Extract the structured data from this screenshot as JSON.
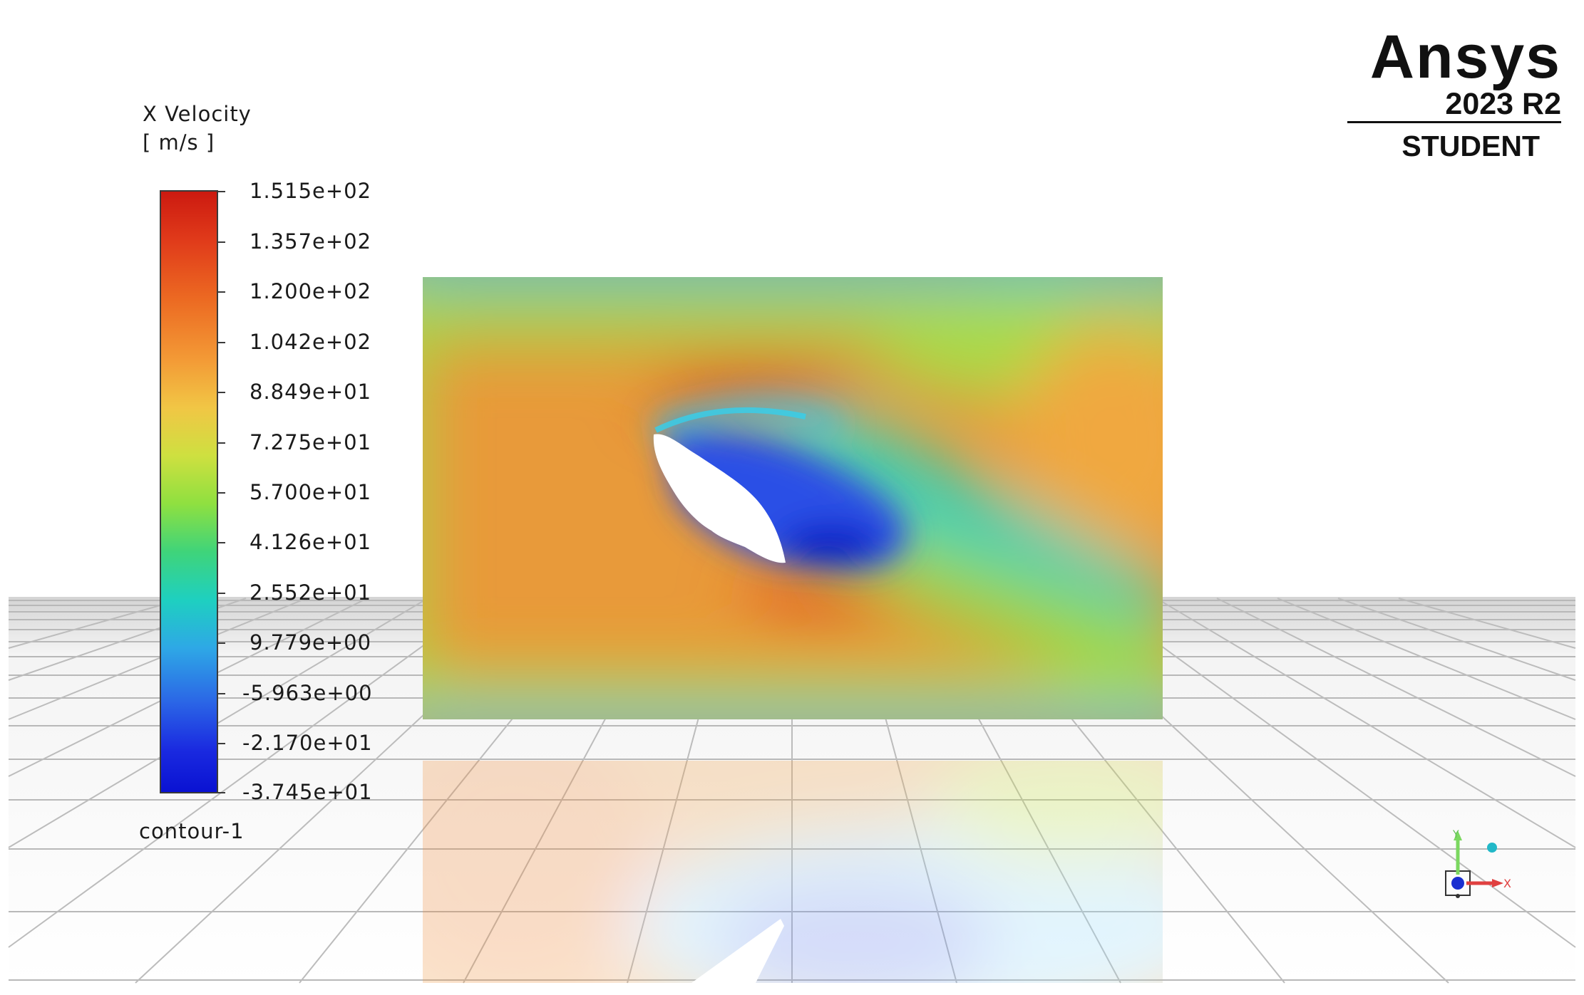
{
  "legend": {
    "title": "X Velocity",
    "unit": "[ m/s ]",
    "name": "contour-1",
    "min": -37.45,
    "max": 151.5,
    "ticks": [
      "1.515e+02",
      "1.357e+02",
      "1.200e+02",
      "1.042e+02",
      "8.849e+01",
      "7.275e+01",
      "5.700e+01",
      "4.126e+01",
      "2.552e+01",
      "9.779e+00",
      "-5.963e+00",
      "-2.170e+01",
      "-3.745e+01"
    ]
  },
  "logo": {
    "brand": "Ansys",
    "version": "2023 R2",
    "edition": "STUDENT"
  },
  "triad": {
    "y_label": "Y",
    "x_label": "X"
  },
  "colors": {
    "high": "#cc1a10",
    "mid": "#8fe040",
    "low": "#0a12d2"
  }
}
